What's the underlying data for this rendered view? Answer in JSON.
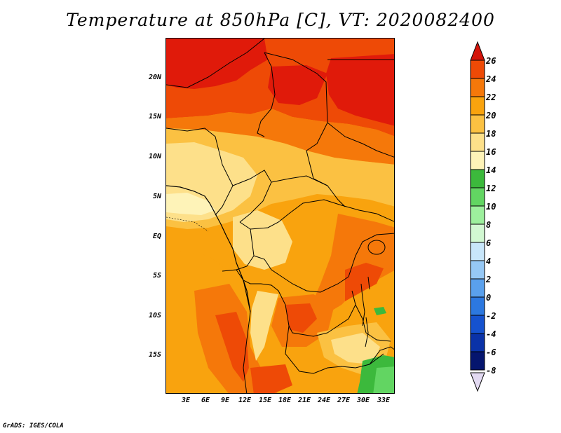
{
  "title": "Temperature at 850hPa [C], VT: 2020082400",
  "credit": "GrADS: IGES/COLA",
  "map": {
    "lat_labels": [
      "20N",
      "15N",
      "10N",
      "5N",
      "EQ",
      "5S",
      "10S",
      "15S"
    ],
    "lat_values": [
      20,
      15,
      10,
      5,
      0,
      -5,
      -10,
      -15
    ],
    "lon_labels": [
      "3E",
      "6E",
      "9E",
      "12E",
      "15E",
      "18E",
      "21E",
      "24E",
      "27E",
      "30E",
      "33E"
    ],
    "lon_values": [
      3,
      6,
      9,
      12,
      15,
      18,
      21,
      24,
      27,
      30,
      33
    ],
    "lon_range": [
      0,
      34.5
    ],
    "lat_range": [
      -19.5,
      25
    ],
    "variable": "Temperature",
    "level": "850hPa",
    "units": "C"
  },
  "colorbar": {
    "levels": [
      "26",
      "24",
      "22",
      "20",
      "18",
      "16",
      "14",
      "12",
      "10",
      "8",
      "6",
      "4",
      "2",
      "0",
      "-2",
      "-4",
      "-6",
      "-8"
    ],
    "colors": [
      "#e01a0a",
      "#ee4a06",
      "#f5780a",
      "#f9a30e",
      "#fbc142",
      "#fde08a",
      "#fef3b8",
      "#3cb93c",
      "#62d562",
      "#9df09d",
      "#d2f8d2",
      "#c8e6fa",
      "#96c8f5",
      "#5aa0ec",
      "#2c78e0",
      "#1552cf",
      "#0a32a8",
      "#05156e",
      "#e8ddf5"
    ],
    "over_color": "#d4140a",
    "under_color": "#e3daf2"
  }
}
